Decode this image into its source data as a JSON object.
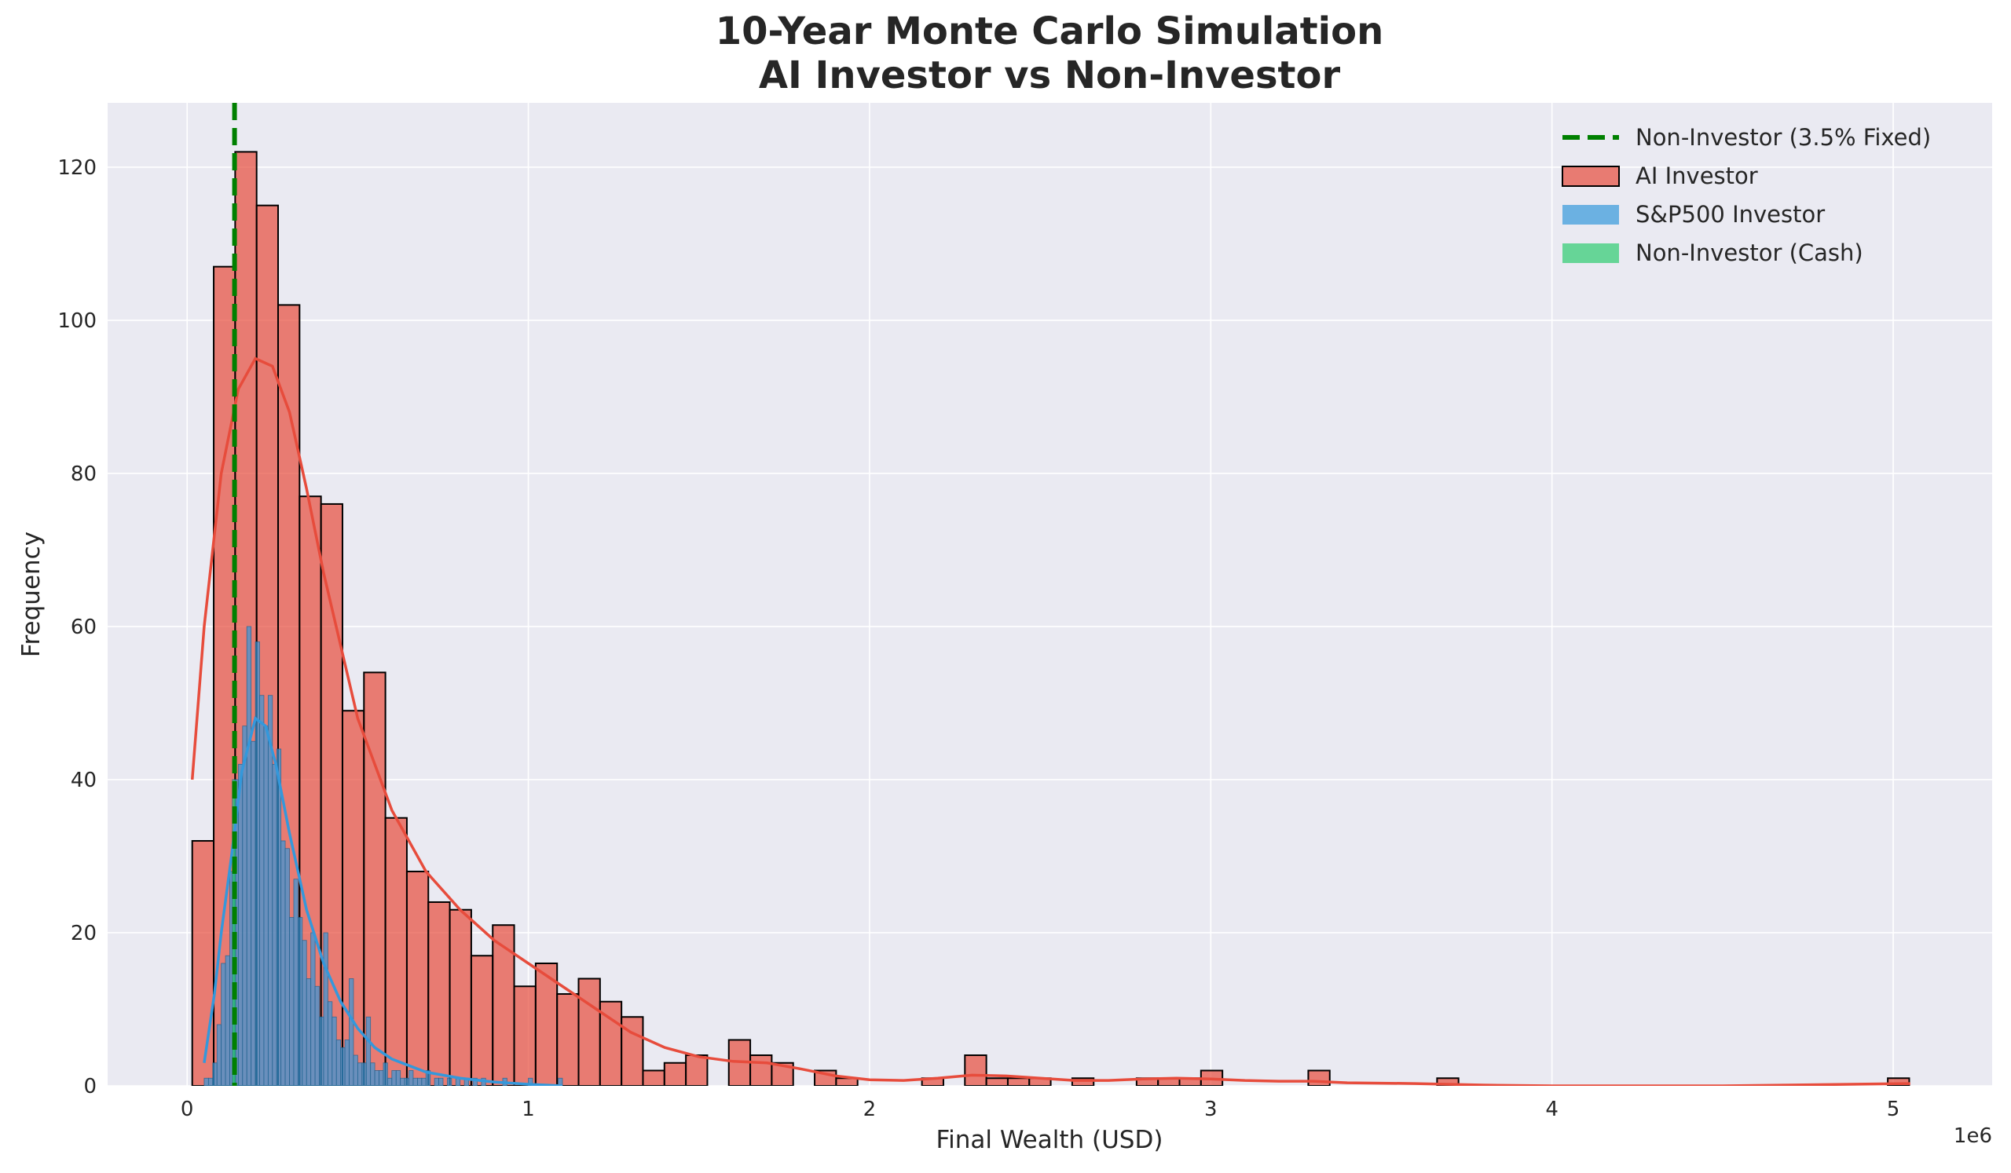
{
  "chart_data": {
    "type": "histogram",
    "title": "10-Year Monte Carlo Simulation",
    "subtitle": "AI Investor vs Non-Investor",
    "x_label": "Final Wealth (USD)",
    "y_label": "Frequency",
    "x_offset_label": "1e6",
    "xlim": [
      -0.233,
      5.29
    ],
    "ylim": [
      0,
      128.4
    ],
    "xticks": [
      0,
      1,
      2,
      3,
      4,
      5
    ],
    "yticks": [
      0,
      20,
      40,
      60,
      80,
      100,
      120
    ],
    "grid": true,
    "legend": "upper right",
    "reference_line": {
      "name": "Non-Investor (3.5% Fixed)",
      "x": 0.139,
      "color": "#008000"
    },
    "series": [
      {
        "name": "AI Investor",
        "color": "#e74c3c",
        "bins": [
          0.015,
          0.0779,
          0.1408,
          0.2037,
          0.2666,
          0.3295,
          0.3924,
          0.4553,
          0.5182,
          0.5811,
          0.644,
          0.7069,
          0.7698,
          0.8327,
          0.8956,
          0.9585,
          1.0214,
          1.0843,
          1.1472,
          1.2101,
          1.273,
          1.3359,
          1.3988,
          1.4617,
          1.5246,
          1.5875,
          1.6504,
          1.7133,
          1.7762,
          1.8391,
          1.902,
          1.9649,
          2.0278,
          2.0907,
          2.1536,
          2.2165,
          2.2794,
          2.3423,
          2.4052,
          2.4681,
          2.531,
          2.5939,
          2.6568,
          2.7197,
          2.7826,
          2.8455,
          2.9084,
          2.9713,
          3.0342,
          3.0971,
          3.16,
          3.2229,
          3.2858,
          3.3487,
          3.4116,
          3.4745,
          3.5374,
          3.6003,
          3.6632,
          3.7261,
          3.789,
          3.8519,
          3.9148,
          3.9777,
          4.0406,
          4.1035,
          4.1664,
          4.2293,
          4.2922,
          4.3551,
          4.418,
          4.4809,
          4.5438,
          4.6067,
          4.6696,
          4.7325,
          4.7954,
          4.8583,
          4.9212,
          4.9841,
          5.047
        ],
        "values": [
          32,
          107,
          122,
          115,
          102,
          77,
          76,
          49,
          54,
          35,
          28,
          24,
          23,
          17,
          21,
          13,
          16,
          12,
          14,
          11,
          9,
          2,
          3,
          4,
          0,
          6,
          4,
          3,
          0,
          2,
          1,
          0,
          0,
          0,
          1,
          0,
          4,
          1,
          1,
          1,
          0,
          1,
          0,
          0,
          1,
          1,
          1,
          2,
          0,
          0,
          0,
          0,
          2,
          0,
          0,
          0,
          0,
          0,
          1,
          0,
          0,
          0,
          0,
          0,
          0,
          0,
          0,
          0,
          0,
          0,
          0,
          0,
          0,
          0,
          0,
          0,
          0,
          0,
          0,
          1
        ],
        "kde": {
          "x": [
            0.015,
            0.05,
            0.1,
            0.15,
            0.2,
            0.25,
            0.3,
            0.35,
            0.4,
            0.5,
            0.6,
            0.7,
            0.8,
            0.9,
            1.0,
            1.1,
            1.2,
            1.3,
            1.4,
            1.5,
            1.6,
            1.7,
            1.8,
            1.9,
            2.0,
            2.1,
            2.2,
            2.3,
            2.4,
            2.5,
            2.6,
            2.7,
            2.8,
            2.9,
            3.0,
            3.1,
            3.2,
            3.3,
            3.4,
            3.6,
            3.8,
            4.0,
            4.5,
            5.05
          ],
          "values": [
            40,
            60,
            80,
            91,
            95,
            94,
            88,
            78,
            67,
            48,
            36,
            28,
            23,
            19,
            16,
            13,
            10,
            7,
            5,
            3.8,
            3.2,
            3,
            2.2,
            1.3,
            0.8,
            0.7,
            1,
            1.4,
            1.3,
            1,
            0.7,
            0.7,
            0.9,
            1,
            0.9,
            0.7,
            0.6,
            0.6,
            0.4,
            0.3,
            0.1,
            0,
            0,
            0.3
          ]
        }
      },
      {
        "name": "S&P500 Investor",
        "color": "#3498db",
        "bins": [
          0.05,
          0.0625,
          0.075,
          0.0875,
          0.1,
          0.1125,
          0.125,
          0.1375,
          0.15,
          0.1625,
          0.175,
          0.1875,
          0.2,
          0.2125,
          0.225,
          0.2375,
          0.25,
          0.2625,
          0.275,
          0.2875,
          0.3,
          0.3125,
          0.325,
          0.3375,
          0.35,
          0.3625,
          0.375,
          0.3875,
          0.4,
          0.4125,
          0.425,
          0.4375,
          0.45,
          0.4625,
          0.475,
          0.4875,
          0.5,
          0.5125,
          0.525,
          0.5375,
          0.55,
          0.5625,
          0.575,
          0.5875,
          0.6,
          0.6125,
          0.625,
          0.6375,
          0.65,
          0.6625,
          0.675,
          0.6875,
          0.7,
          0.7125,
          0.725,
          0.7375,
          0.75,
          0.7625,
          0.775,
          0.7875,
          0.8,
          0.8125,
          0.825,
          0.8375,
          0.85,
          0.8625,
          0.875,
          0.8875,
          0.9,
          0.9125,
          0.925,
          0.9375,
          0.95,
          0.9625,
          0.975,
          0.9875,
          1.0,
          1.0125,
          1.025,
          1.0375,
          1.05,
          1.0625,
          1.075,
          1.0875,
          1.1
        ],
        "values": [
          1,
          1,
          3,
          8,
          16,
          17,
          28,
          40,
          42,
          47,
          60,
          45,
          58,
          51,
          47,
          51,
          42,
          44,
          32,
          31,
          22,
          27,
          22,
          19,
          14,
          20,
          13,
          9,
          20,
          11,
          9,
          6,
          5,
          6,
          14,
          4,
          3,
          3,
          9,
          3,
          2,
          2,
          3,
          1,
          2,
          2,
          1,
          1,
          2,
          1,
          1,
          1,
          2,
          0,
          1,
          1,
          0,
          1,
          0,
          1,
          0,
          1,
          0,
          1,
          0,
          1,
          0,
          0,
          0,
          0,
          1,
          0,
          0,
          0,
          0,
          0,
          1,
          0,
          0,
          0,
          0,
          0,
          0,
          1
        ],
        "kde": {
          "x": [
            0.05,
            0.08,
            0.1,
            0.13,
            0.16,
            0.2,
            0.23,
            0.26,
            0.3,
            0.35,
            0.4,
            0.45,
            0.5,
            0.55,
            0.6,
            0.7,
            0.8,
            0.9,
            1.0,
            1.1
          ],
          "values": [
            3,
            12,
            20,
            30,
            41,
            48,
            47,
            42,
            33,
            23,
            16,
            11,
            7.5,
            5,
            3.5,
            1.8,
            1,
            0.5,
            0.2,
            0
          ]
        }
      },
      {
        "name": "Non-Investor (Cash)",
        "color": "#2ecc71",
        "bins": [
          0.1325,
          0.1425
        ],
        "values": [
          40
        ]
      }
    ]
  }
}
